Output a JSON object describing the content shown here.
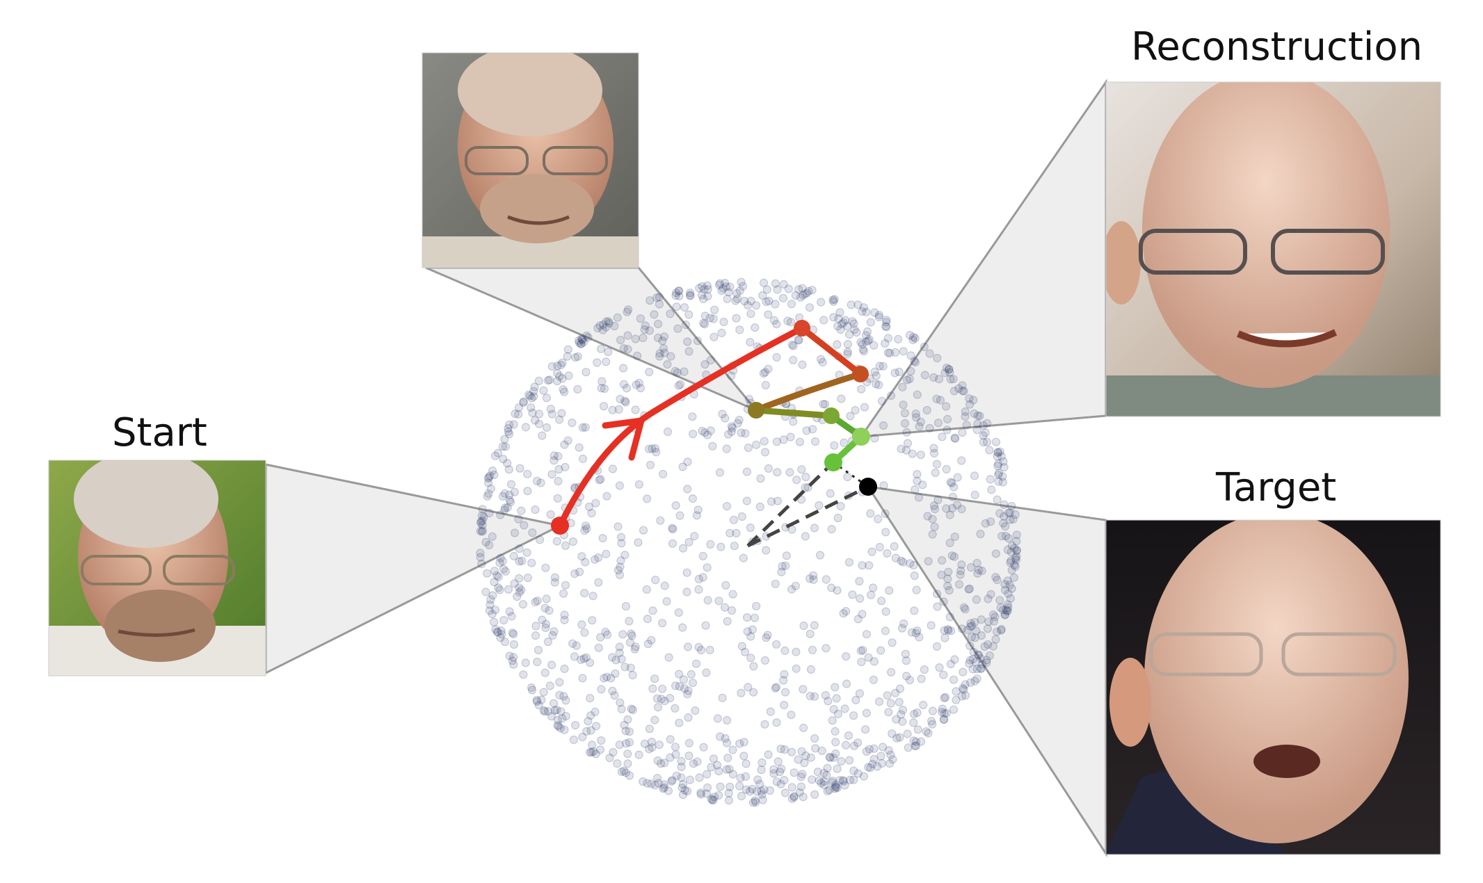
{
  "labels": {
    "start": "Start",
    "reconstruction": "Reconstruction",
    "target": "Target"
  },
  "colors": {
    "background": "#ffffff",
    "sphere_points": "#2c3a6b",
    "callout_fill": "#eeeeee",
    "callout_stroke": "#999999",
    "path_start": "#e53023",
    "path_mid": "#a0641f",
    "path_late": "#7e8c22",
    "path_end": "#67c13a",
    "target_point": "#000000",
    "dashed_line": "#444444"
  },
  "icons": {
    "start_image": "face-photo-start",
    "intermediate_image": "face-photo-intermediate",
    "reconstruction_image": "face-photo-reconstruction",
    "target_image": "face-photo-target",
    "direction_arrow": "arrowhead-icon"
  }
}
